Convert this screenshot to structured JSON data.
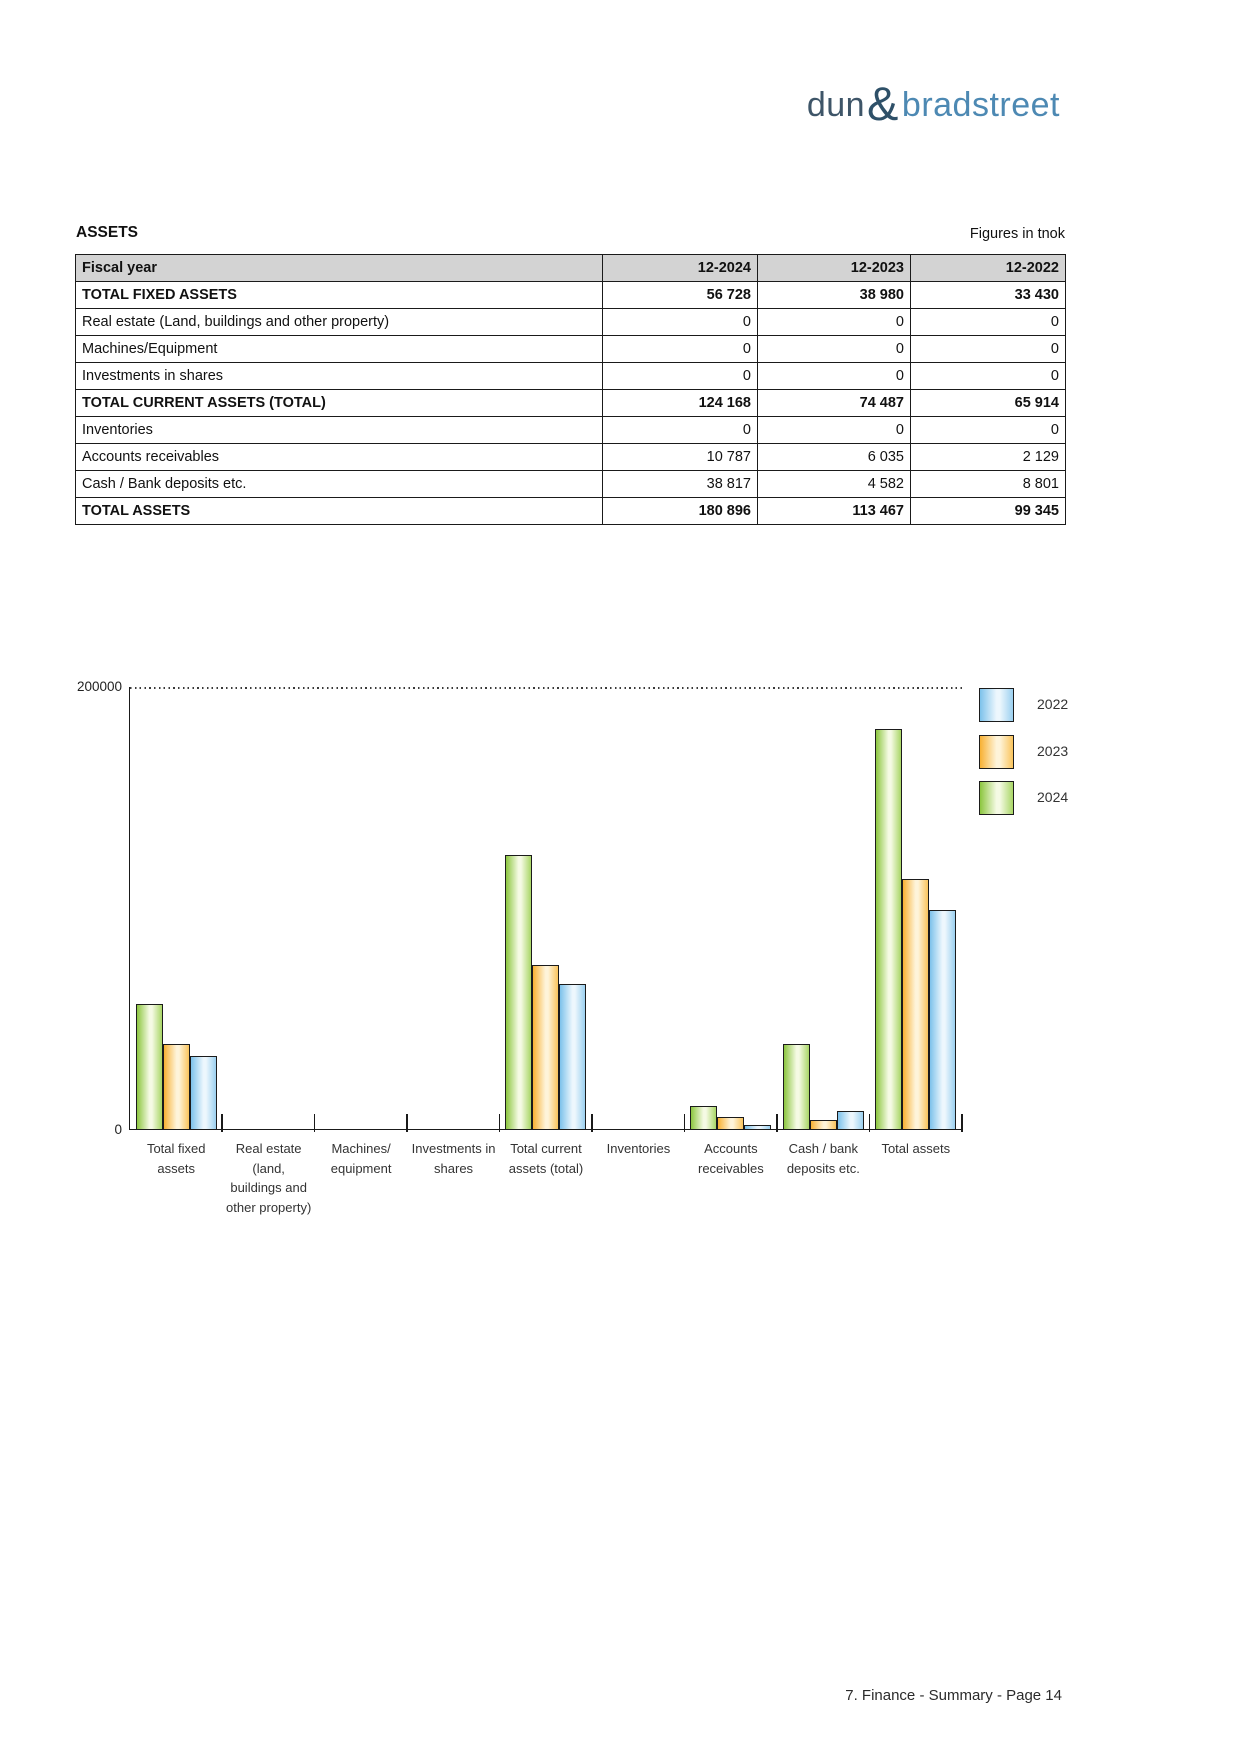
{
  "logo": {
    "dun": "dun",
    "amp": "&",
    "bradstreet": "bradstreet",
    "colors": {
      "dun": "#3e5568",
      "amp": "#2e5068",
      "bradstreet": "#4d89b3"
    }
  },
  "header": {
    "title": "ASSETS",
    "note": "Figures in tnok"
  },
  "table": {
    "header": {
      "label": "Fiscal year",
      "years": [
        "12-2024",
        "12-2023",
        "12-2022"
      ]
    },
    "rows": [
      {
        "label": "TOTAL FIXED ASSETS",
        "bold": true,
        "values": [
          "56 728",
          "38 980",
          "33 430"
        ]
      },
      {
        "label": "Real estate (Land, buildings and other property)",
        "bold": false,
        "values": [
          "0",
          "0",
          "0"
        ]
      },
      {
        "label": "Machines/Equipment",
        "bold": false,
        "values": [
          "0",
          "0",
          "0"
        ]
      },
      {
        "label": "Investments in shares",
        "bold": false,
        "values": [
          "0",
          "0",
          "0"
        ]
      },
      {
        "label": "TOTAL CURRENT ASSETS (TOTAL)",
        "bold": true,
        "values": [
          "124 168",
          "74 487",
          "65 914"
        ]
      },
      {
        "label": "Inventories",
        "bold": false,
        "values": [
          "0",
          "0",
          "0"
        ]
      },
      {
        "label": "Accounts receivables",
        "bold": false,
        "values": [
          "10 787",
          "6 035",
          "2 129"
        ]
      },
      {
        "label": "Cash / Bank deposits etc.",
        "bold": false,
        "values": [
          "38 817",
          "4 582",
          "8 801"
        ]
      },
      {
        "label": "TOTAL ASSETS",
        "bold": true,
        "values": [
          "180 896",
          "113 467",
          "99 345"
        ]
      }
    ]
  },
  "chart_data": {
    "type": "bar",
    "title": "",
    "xlabel": "",
    "ylabel": "",
    "ylim": [
      0,
      200000
    ],
    "ytick_labels": [
      "200000",
      "0"
    ],
    "grid": "single dotted gridline at 200000",
    "legend_position": "top-right",
    "legend_order": [
      "2022",
      "2023",
      "2024"
    ],
    "categories": [
      "Total fixed assets",
      "Real estate (land, buildings and other property)",
      "Machines/ equipment",
      "Investments in shares",
      "Total current assets (total)",
      "Inventories",
      "Accounts receivables",
      "Cash / bank deposits etc.",
      "Total assets"
    ],
    "category_label_lines": [
      [
        "Total fixed",
        "assets"
      ],
      [
        "Real estate",
        "(land,",
        "buildings and",
        "other property)"
      ],
      [
        "Machines/",
        "equipment"
      ],
      [
        "Investments in",
        "shares"
      ],
      [
        "Total current",
        "assets (total)"
      ],
      [
        "Inventories"
      ],
      [
        "Accounts",
        "receivables"
      ],
      [
        "Cash / bank",
        "deposits etc."
      ],
      [
        "Total assets"
      ]
    ],
    "series": [
      {
        "name": "2024",
        "values": [
          56728,
          0,
          0,
          0,
          124168,
          0,
          10787,
          38817,
          180896
        ],
        "edge_color": "#8CC63F",
        "edge_soft_color": "#A9D666",
        "mid_color": "#F5FAE4"
      },
      {
        "name": "2023",
        "values": [
          38980,
          0,
          0,
          0,
          74487,
          0,
          6035,
          4582,
          113467
        ],
        "edge_color": "#F8B133",
        "edge_soft_color": "#FAC45C",
        "mid_color": "#FEF4DA"
      },
      {
        "name": "2022",
        "values": [
          33430,
          0,
          0,
          0,
          65914,
          0,
          2129,
          8801,
          99345
        ],
        "edge_color": "#7DC2EB",
        "edge_soft_color": "#9BD0F0",
        "mid_color": "#EDF7FD"
      }
    ]
  },
  "footer": {
    "text": "7. Finance - Summary - Page 14"
  }
}
